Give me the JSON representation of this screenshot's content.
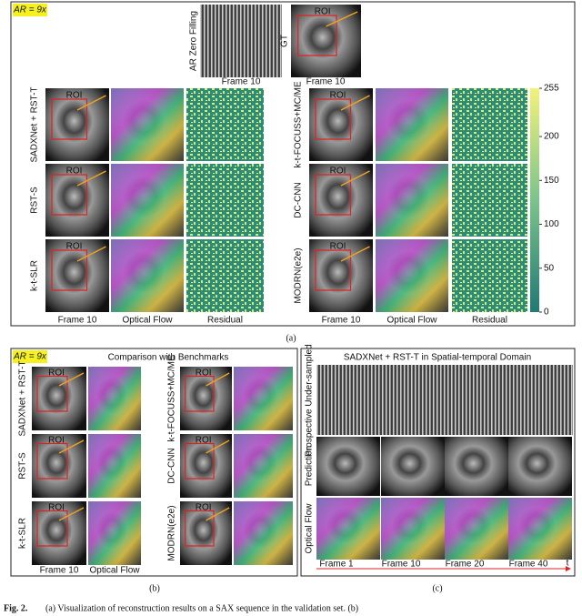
{
  "panel_a": {
    "ar_label": "AR = 9x",
    "top": [
      {
        "label": "AR Zero Filling",
        "frame": "Frame 10"
      },
      {
        "label": "GT",
        "frame": "Frame 10"
      }
    ],
    "roi": "ROI",
    "left_rows": [
      "SADXNet + RST-T",
      "RST-S",
      "k-t-SLR"
    ],
    "right_rows": [
      "k-t-FOCUSS+MC/ME",
      "DC-CNN",
      "MODRN(e2e)"
    ],
    "columns_left": [
      "Frame 10",
      "Optical Flow",
      "Residual"
    ],
    "columns_right": [
      "Frame 10",
      "Optical Flow",
      "Residual"
    ],
    "colorbar": {
      "lim": [
        0,
        255
      ],
      "ticks": [
        0,
        50,
        100,
        150,
        200,
        255
      ]
    },
    "panel_label": "(a)"
  },
  "panel_b": {
    "ar_label": "AR = 9x",
    "title": "Comparison with Benchmarks",
    "left_rows": [
      "SADXNet + RST-T",
      "RST-S",
      "k-t-SLR"
    ],
    "right_rows": [
      "k-t-FOCUSS+MC/ME",
      "DC-CNN",
      "MODRN(e2e)"
    ],
    "columns": [
      "Frame 10",
      "Optical Flow"
    ],
    "panel_label": "(b)"
  },
  "panel_c": {
    "title": "SADXNet + RST-T in Spatial-temporal Domain",
    "rows": [
      "Prospective Under-sampled",
      "Prediction",
      "Optical Flow"
    ],
    "frames": [
      "Frame 1",
      "Frame 10",
      "Frame 20",
      "Frame 40"
    ],
    "time_label": "t",
    "panel_label": "(c)"
  },
  "caption": {
    "label": "Fig. 2.",
    "text": "(a) Visualization of reconstruction results on a SAX sequence in the validation set. (b)"
  }
}
